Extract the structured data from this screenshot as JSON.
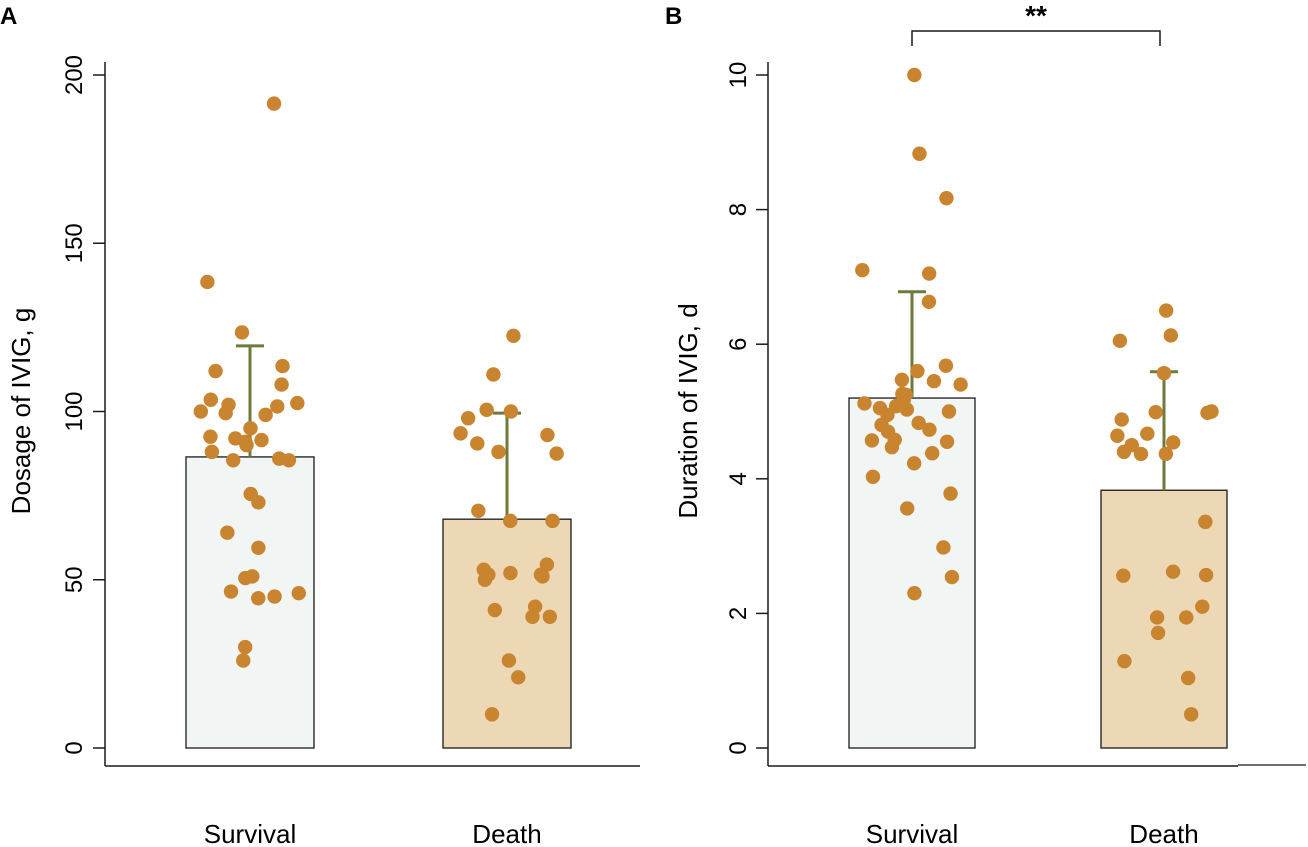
{
  "colors": {
    "point": "#C8842F",
    "errorbar": "#6E7A3A",
    "bar_outline": "#1a1a1a",
    "axis": "#1a1a1a"
  },
  "chart_data": [
    {
      "panel_label": "A",
      "type": "bar",
      "ylabel": "Dosage of IVIG, g",
      "ylim": [
        0,
        200
      ],
      "yticks": [
        0,
        50,
        100,
        150,
        200
      ],
      "categories": [
        "Survival",
        "Death"
      ],
      "bars": [
        {
          "category": "Survival",
          "mean": 86.5,
          "error_upper": 119.5,
          "fill": "#F1F5F4"
        },
        {
          "category": "Death",
          "mean": 68,
          "error_upper": 99.5,
          "fill": "#EDD8B6"
        }
      ],
      "points": [
        {
          "category": "Survival",
          "values": [
            191.5,
            138.5,
            123.5,
            113.5,
            112,
            108,
            103.5,
            102.5,
            102,
            101.5,
            100,
            99.5,
            99,
            95,
            92.5,
            92,
            91.5,
            91,
            90,
            88,
            86,
            85.5,
            85.5,
            75.5,
            73,
            64,
            59.5,
            51,
            50.5,
            46.5,
            46,
            45,
            44.5,
            30,
            26
          ]
        },
        {
          "category": "Death",
          "values": [
            122.5,
            111,
            100.5,
            100,
            98,
            93.5,
            93,
            90.5,
            88,
            87.5,
            70.5,
            67.5,
            67.5,
            54.5,
            53,
            52,
            51.5,
            51.5,
            51,
            50,
            42,
            41,
            39,
            39,
            26,
            21,
            10
          ]
        }
      ],
      "x_tick_positions": [
        0.3,
        0.7
      ],
      "significance": ""
    },
    {
      "panel_label": "B",
      "type": "bar",
      "ylabel": "Duration of IVIG, d",
      "ylim": [
        0,
        10
      ],
      "yticks": [
        0,
        2,
        4,
        6,
        8,
        10
      ],
      "categories": [
        "Survival",
        "Death"
      ],
      "bars": [
        {
          "category": "Survival",
          "mean": 5.2,
          "error_upper": 6.78,
          "fill": "#F1F5F4"
        },
        {
          "category": "Death",
          "mean": 3.83,
          "error_upper": 5.59,
          "fill": "#EDD8B6"
        }
      ],
      "points": [
        {
          "category": "Survival",
          "values": [
            10,
            8.83,
            8.17,
            7.1,
            7.05,
            6.63,
            5.68,
            5.6,
            5.47,
            5.45,
            5.4,
            5.26,
            5.25,
            5.17,
            5.12,
            5.08,
            5.05,
            5.03,
            5.0,
            4.95,
            4.83,
            4.8,
            4.73,
            4.7,
            4.58,
            4.57,
            4.55,
            4.47,
            4.38,
            4.23,
            4.03,
            3.78,
            3.56,
            2.98,
            2.54,
            2.3
          ]
        },
        {
          "category": "Death",
          "values": [
            6.5,
            6.13,
            6.05,
            5.57,
            5.0,
            4.99,
            4.98,
            4.88,
            4.67,
            4.64,
            4.54,
            4.5,
            4.4,
            4.37,
            4.37,
            3.36,
            2.62,
            2.57,
            2.56,
            2.1,
            1.94,
            1.94,
            1.71,
            1.29,
            1.04,
            0.5
          ]
        }
      ],
      "x_tick_positions": [
        0.3,
        0.7
      ],
      "significance": "**"
    }
  ]
}
